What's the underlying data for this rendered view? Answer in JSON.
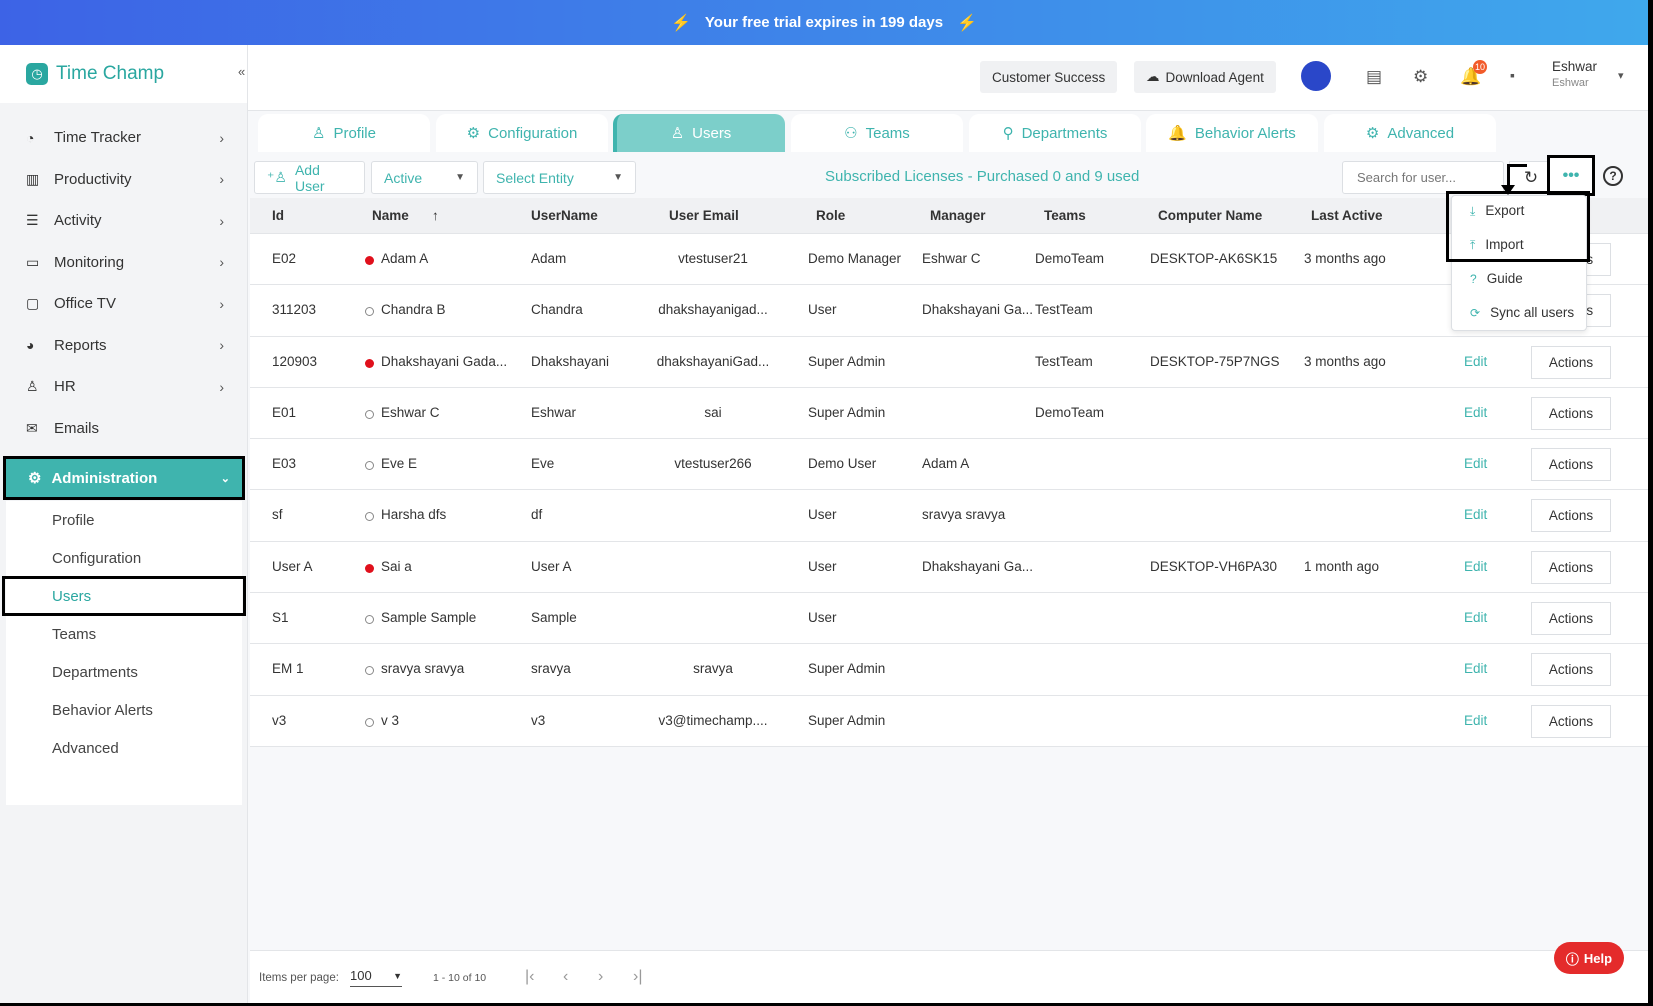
{
  "banner": {
    "text": "Your free trial expires in 199 days"
  },
  "app": {
    "name": "Time Champ"
  },
  "sidebar": {
    "items": [
      {
        "label": "Time Tracker",
        "icon": "clock-icon"
      },
      {
        "label": "Productivity",
        "icon": "chart-icon"
      },
      {
        "label": "Activity",
        "icon": "activity-icon"
      },
      {
        "label": "Monitoring",
        "icon": "monitor-icon"
      },
      {
        "label": "Office TV",
        "icon": "tv-icon"
      },
      {
        "label": "Reports",
        "icon": "reports-icon"
      },
      {
        "label": "HR",
        "icon": "person-icon"
      },
      {
        "label": "Emails",
        "icon": "mail-icon"
      }
    ],
    "admin_label": "Administration",
    "sub_items": [
      "Profile",
      "Configuration",
      "Users",
      "Teams",
      "Departments",
      "Behavior Alerts",
      "Advanced"
    ]
  },
  "header": {
    "customer_success": "Customer Success",
    "download_agent": "Download Agent",
    "notifications_count": "10",
    "user_name": "Eshwar",
    "user_sub": "Eshwar"
  },
  "tabs": [
    "Profile",
    "Configuration",
    "Users",
    "Teams",
    "Departments",
    "Behavior Alerts",
    "Advanced"
  ],
  "toolbar": {
    "add_user": "Add User",
    "status_filter": "Active",
    "entity_placeholder": "Select Entity",
    "licenses": "Subscribed Licenses - Purchased 0 and 9 used",
    "search_placeholder": "Search for user..."
  },
  "table": {
    "headers": [
      "Id",
      "Name",
      "UserName",
      "User Email",
      "Role",
      "Manager",
      "Teams",
      "Computer Name",
      "Last Active"
    ],
    "rows": [
      {
        "id": "E02",
        "name": "Adam A",
        "online": true,
        "username": "Adam",
        "email": "vtestuser21",
        "role": "Demo Manager",
        "manager": "Eshwar C",
        "teams": "DemoTeam",
        "computer": "DESKTOP-AK6SK15",
        "last_active": "3 months ago"
      },
      {
        "id": "311203",
        "name": "Chandra B",
        "online": false,
        "username": "Chandra",
        "email": "dhakshayanigad...",
        "role": "User",
        "manager": "Dhakshayani Ga...",
        "teams": "TestTeam",
        "computer": "",
        "last_active": ""
      },
      {
        "id": "120903",
        "name": "Dhakshayani Gada...",
        "online": true,
        "username": "Dhakshayani",
        "email": "dhakshayaniGad...",
        "role": "Super Admin",
        "manager": "",
        "teams": "TestTeam",
        "computer": "DESKTOP-75P7NGS",
        "last_active": "3 months ago"
      },
      {
        "id": "E01",
        "name": "Eshwar C",
        "online": false,
        "username": "Eshwar",
        "email": "sai",
        "role": "Super Admin",
        "manager": "",
        "teams": "DemoTeam",
        "computer": "",
        "last_active": ""
      },
      {
        "id": "E03",
        "name": "Eve E",
        "online": false,
        "username": "Eve",
        "email": "vtestuser266",
        "role": "Demo User",
        "manager": "Adam A",
        "teams": "",
        "computer": "",
        "last_active": ""
      },
      {
        "id": "sf",
        "name": "Harsha dfs",
        "online": false,
        "username": "df",
        "email": "",
        "role": "User",
        "manager": "sravya sravya",
        "teams": "",
        "computer": "",
        "last_active": ""
      },
      {
        "id": "User A",
        "name": "Sai a",
        "online": true,
        "username": "User A",
        "email": "",
        "role": "User",
        "manager": "Dhakshayani Ga...",
        "teams": "",
        "computer": "DESKTOP-VH6PA30",
        "last_active": "1 month ago"
      },
      {
        "id": "S1",
        "name": "Sample Sample",
        "online": false,
        "username": "Sample",
        "email": "",
        "role": "User",
        "manager": "",
        "teams": "",
        "computer": "",
        "last_active": ""
      },
      {
        "id": "EM 1",
        "name": "sravya sravya",
        "online": false,
        "username": "sravya",
        "email": "sravya",
        "role": "Super Admin",
        "manager": "",
        "teams": "",
        "computer": "",
        "last_active": ""
      },
      {
        "id": "v3",
        "name": "v 3",
        "online": false,
        "username": "v3",
        "email": "v3@timechamp....",
        "role": "Super Admin",
        "manager": "",
        "teams": "",
        "computer": "",
        "last_active": ""
      }
    ],
    "edit_label": "Edit",
    "actions_label": "Actions"
  },
  "menu": {
    "items": [
      "Export",
      "Import",
      "Guide",
      "Sync all users"
    ]
  },
  "footer": {
    "items_per_page_label": "Items per page:",
    "items_per_page": "100",
    "range": "1 - 10 of 10"
  },
  "help": {
    "label": "Help"
  },
  "colors": {
    "accent": "#3fb4ae",
    "online": "#e0101c",
    "banner_start": "#3d63e6",
    "banner_end": "#3fa8ec"
  }
}
